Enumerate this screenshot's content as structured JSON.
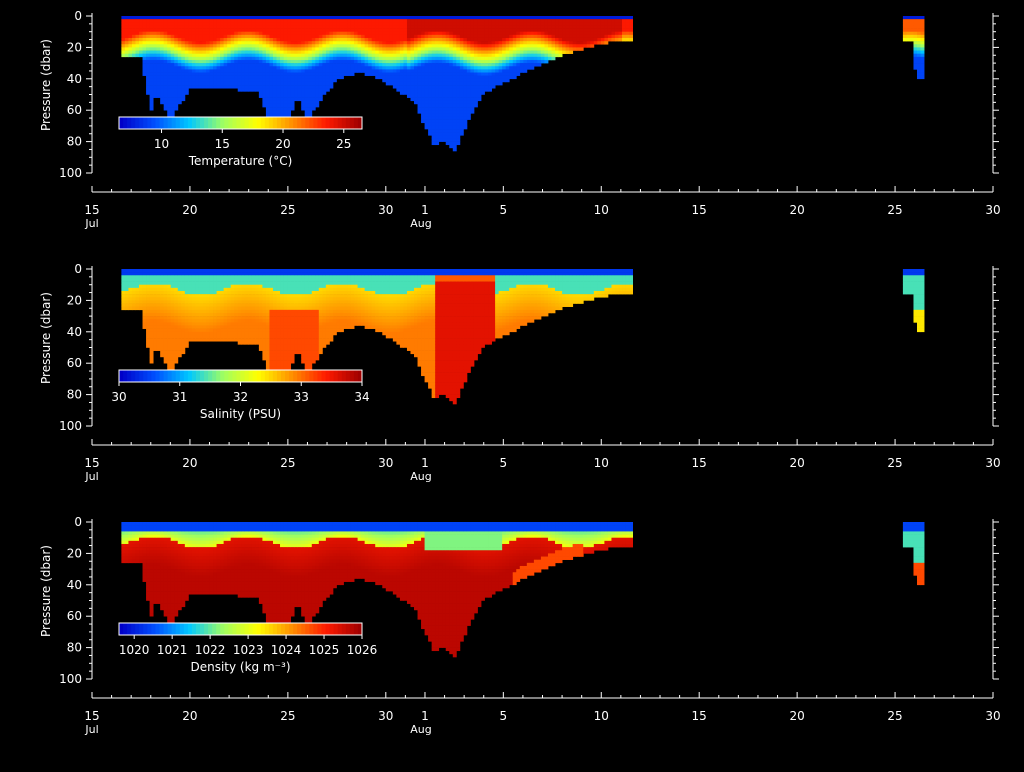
{
  "colors": {
    "background": "#000000",
    "foreground": "#ffffff",
    "colormap": [
      "#0000c8",
      "#0050ff",
      "#00c8ff",
      "#a0ff60",
      "#ffff00",
      "#ff9000",
      "#ff1a00",
      "#a00000"
    ]
  },
  "chart_data": [
    {
      "type": "heatmap",
      "title": "",
      "ylabel": "Pressure (dbar)",
      "xlabel": "",
      "ylim": [
        100,
        0
      ],
      "yticks": [
        0,
        20,
        40,
        60,
        80,
        100
      ],
      "xlim": [
        "Jul 15",
        "Aug 30"
      ],
      "xticks": [
        "15",
        "20",
        "25",
        "30",
        "1",
        "5",
        "10",
        "15",
        "20",
        "25",
        "30"
      ],
      "month_labels": [
        "Jul",
        "Aug"
      ],
      "colorbar": {
        "label": "Temperature (°C)",
        "range": [
          6.5,
          26.5
        ],
        "ticks": [
          "10",
          "15",
          "20",
          "25"
        ],
        "tick_values": [
          10,
          15,
          20,
          25
        ]
      },
      "variable": "temperature"
    },
    {
      "type": "heatmap",
      "title": "",
      "ylabel": "Pressure (dbar)",
      "xlabel": "",
      "ylim": [
        100,
        0
      ],
      "yticks": [
        0,
        20,
        40,
        60,
        80,
        100
      ],
      "xlim": [
        "Jul 15",
        "Aug 30"
      ],
      "xticks": [
        "15",
        "20",
        "25",
        "30",
        "1",
        "5",
        "10",
        "15",
        "20",
        "25",
        "30"
      ],
      "month_labels": [
        "Jul",
        "Aug"
      ],
      "colorbar": {
        "label": "Salinity (PSU)",
        "range": [
          30,
          34
        ],
        "ticks": [
          "30",
          "31",
          "32",
          "33",
          "34"
        ],
        "tick_values": [
          30,
          31,
          32,
          33,
          34
        ]
      },
      "variable": "salinity"
    },
    {
      "type": "heatmap",
      "title": "",
      "ylabel": "Pressure (dbar)",
      "xlabel": "",
      "ylim": [
        100,
        0
      ],
      "yticks": [
        0,
        20,
        40,
        60,
        80,
        100
      ],
      "xlim": [
        "Jul 15",
        "Aug 30"
      ],
      "xticks": [
        "15",
        "20",
        "25",
        "30",
        "1",
        "5",
        "10",
        "15",
        "20",
        "25",
        "30"
      ],
      "month_labels": [
        "Jul",
        "Aug"
      ],
      "colorbar": {
        "label": "Density (kg m⁻³)",
        "range": [
          1019.6,
          1026
        ],
        "ticks": [
          "1020",
          "1021",
          "1022",
          "1023",
          "1024",
          "1025",
          "1026"
        ],
        "tick_values": [
          1020,
          1021,
          1022,
          1023,
          1024,
          1025,
          1026
        ]
      },
      "variable": "density"
    }
  ],
  "profile_data": {
    "deployments": [
      {
        "start": "Jul 16.5",
        "end": "Aug 11.5"
      },
      {
        "start": "Aug 26.4",
        "end": "Aug 27.4"
      }
    ],
    "max_depth_by_day": {
      "days": [
        16.5,
        17.5,
        18.0,
        18.3,
        19.0,
        20.0,
        22.0,
        23.5,
        24.0,
        25.0,
        25.5,
        26.0,
        26.7,
        27.5,
        28.5,
        29.5,
        30.5,
        31.5,
        32.0,
        32.5,
        33.0,
        33.5,
        34.0,
        34.5,
        35.0,
        36.0,
        37.0,
        38.0,
        39.0,
        40.0,
        41.0,
        41.5,
        42.5
      ],
      "depths": [
        25,
        25,
        60,
        48,
        65,
        45,
        45,
        48,
        65,
        66,
        50,
        66,
        52,
        40,
        35,
        38,
        45,
        55,
        70,
        82,
        78,
        85,
        72,
        58,
        48,
        42,
        35,
        30,
        24,
        20,
        17,
        15,
        15
      ]
    }
  }
}
